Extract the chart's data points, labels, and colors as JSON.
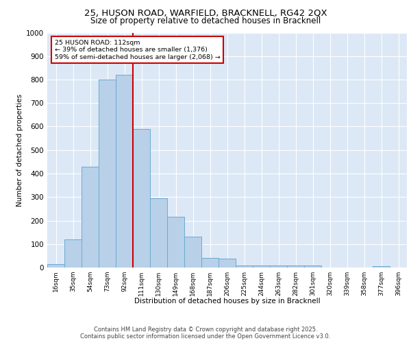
{
  "title_line1": "25, HUSON ROAD, WARFIELD, BRACKNELL, RG42 2QX",
  "title_line2": "Size of property relative to detached houses in Bracknell",
  "xlabel": "Distribution of detached houses by size in Bracknell",
  "ylabel": "Number of detached properties",
  "footer_line1": "Contains HM Land Registry data © Crown copyright and database right 2025.",
  "footer_line2": "Contains public sector information licensed under the Open Government Licence v3.0.",
  "bar_labels": [
    "16sqm",
    "35sqm",
    "54sqm",
    "73sqm",
    "92sqm",
    "111sqm",
    "130sqm",
    "149sqm",
    "168sqm",
    "187sqm",
    "206sqm",
    "225sqm",
    "244sqm",
    "263sqm",
    "282sqm",
    "301sqm",
    "320sqm",
    "339sqm",
    "358sqm",
    "377sqm",
    "396sqm"
  ],
  "bar_values": [
    15,
    120,
    430,
    800,
    820,
    590,
    295,
    215,
    130,
    42,
    38,
    10,
    10,
    8,
    8,
    8,
    0,
    0,
    0,
    7,
    0
  ],
  "bar_color": "#b8d0e8",
  "bar_edge_color": "#6aaad4",
  "vline_color": "#cc0000",
  "annotation_title": "25 HUSON ROAD: 112sqm",
  "annotation_line1": "← 39% of detached houses are smaller (1,376)",
  "annotation_line2": "59% of semi-detached houses are larger (2,068) →",
  "annotation_box_color": "#cc0000",
  "ylim": [
    0,
    1000
  ],
  "yticks": [
    0,
    100,
    200,
    300,
    400,
    500,
    600,
    700,
    800,
    900,
    1000
  ],
  "bg_color": "#dce8f5",
  "fig_bg_color": "#ffffff"
}
